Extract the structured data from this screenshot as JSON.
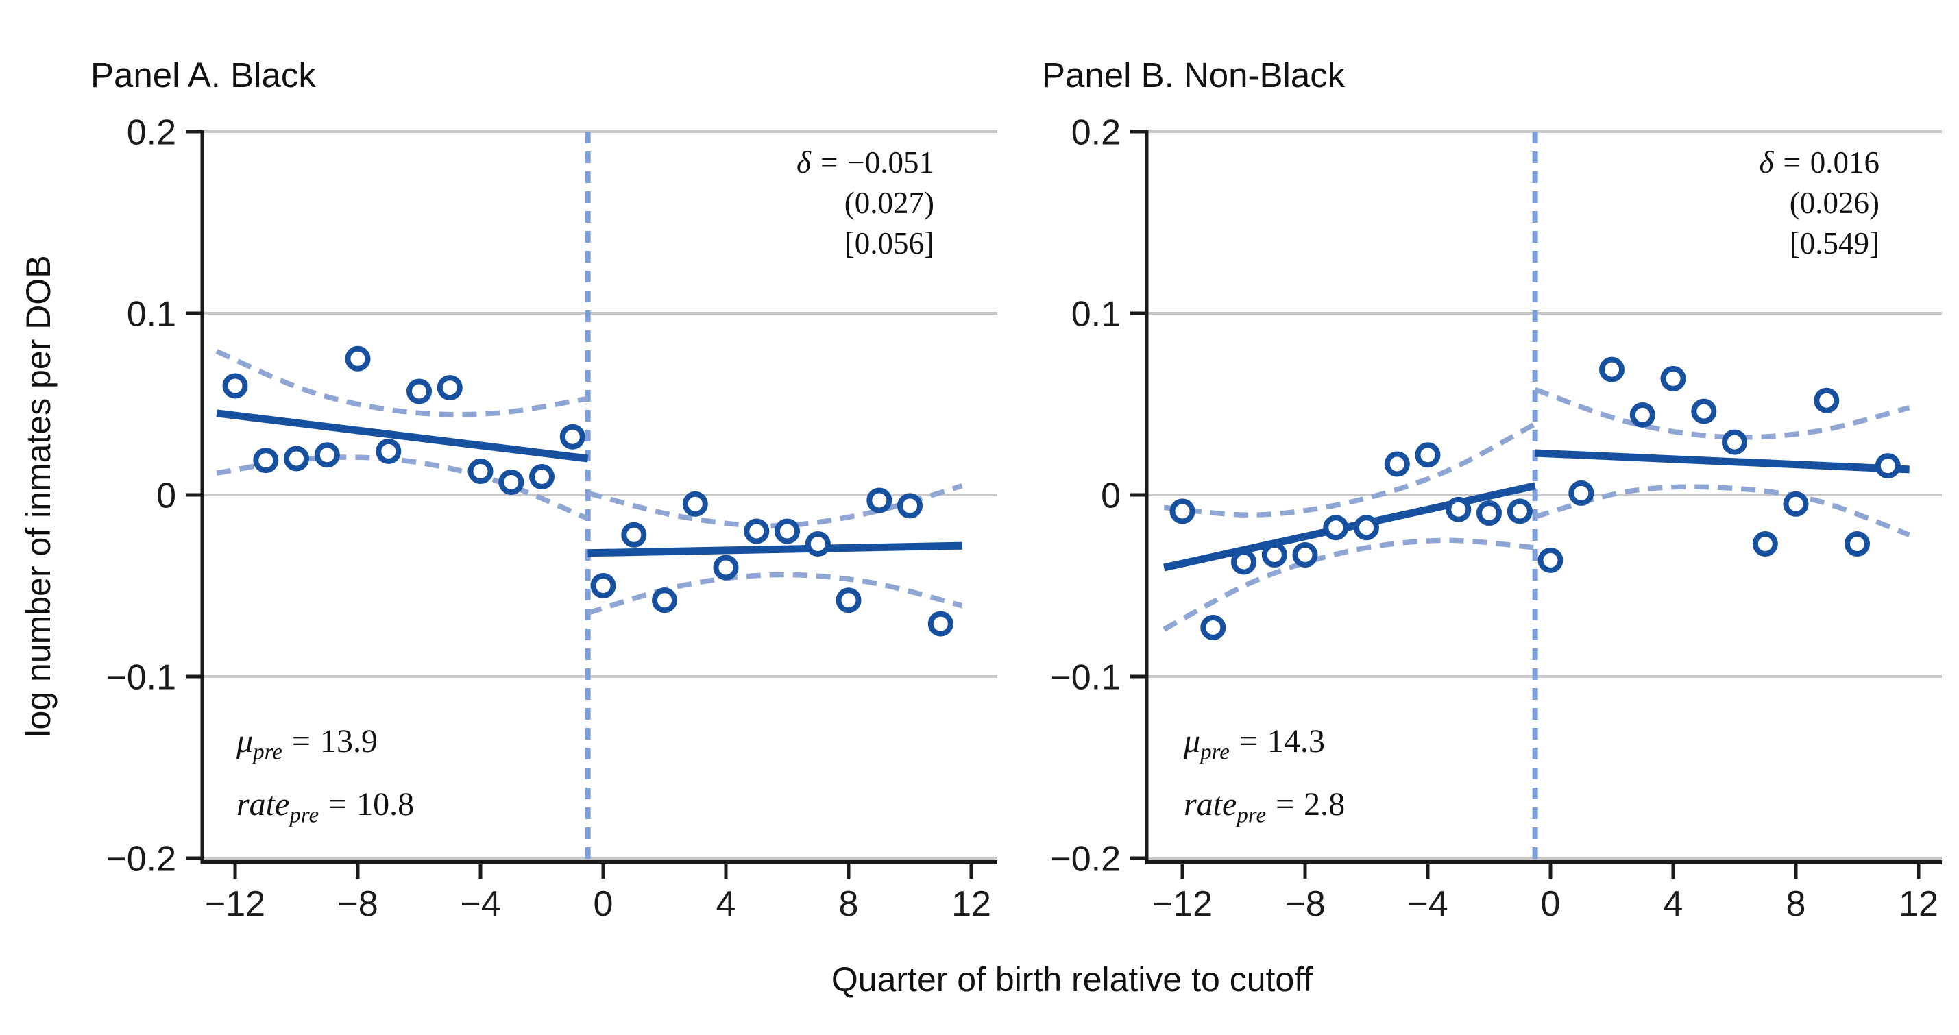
{
  "figure": {
    "x_axis_label": "Quarter of birth relative to cutoff",
    "y_axis_label": "log number of inmates per DOB",
    "colors": {
      "fit_line": "#17509e",
      "marker": "#17509e",
      "ci_band": "#8fa6d4",
      "cutoff_line": "#7d9ed8",
      "gridline": "#c8c8c8",
      "axis": "#1a1a1a",
      "text": "#1a1a1a"
    }
  },
  "chart_data": [
    {
      "type": "scatter",
      "title": "Panel A. Black",
      "xlabel": "Quarter of birth relative to cutoff",
      "ylabel": "log number of inmates per DOB",
      "xlim": [
        -13.1,
        12.9
      ],
      "ylim": [
        -0.202,
        0.2
      ],
      "x_ticks": {
        "values": [
          -12,
          -8,
          -4,
          0,
          4,
          8,
          12
        ],
        "labels": [
          "−12",
          "−8",
          "−4",
          "0",
          "4",
          "8",
          "12"
        ]
      },
      "y_ticks": {
        "values": [
          0.2,
          0.1,
          0,
          -0.1,
          -0.2
        ],
        "labels": [
          "0.2",
          "0.1",
          "0",
          "−0.1",
          "−0.2"
        ]
      },
      "grid": "horizontal",
      "cutoff_x": -0.5,
      "delta": {
        "symbol": "δ",
        "eq": "=",
        "value": "−0.051",
        "std_error": "(0.027)",
        "p_value": "[0.056]"
      },
      "stats": {
        "mu_symbol": "μ",
        "rate_symbol": "rate",
        "sub": "pre",
        "eq": "=",
        "mu_value": "13.9",
        "rate_value": "10.8"
      },
      "pre": {
        "x": [
          -12,
          -11,
          -10,
          -9,
          -8,
          -7,
          -6,
          -5,
          -4,
          -3,
          -2,
          -1
        ],
        "y": [
          0.06,
          0.019,
          0.02,
          0.022,
          0.075,
          0.024,
          0.057,
          0.059,
          0.013,
          0.007,
          0.01,
          0.032
        ],
        "fit": [
          [
            -12.6,
            0.045
          ],
          [
            -0.5,
            0.02
          ]
        ],
        "band_upper": [
          [
            -12.6,
            0.079
          ],
          [
            -9.58,
            0.057
          ],
          [
            -6.55,
            0.046
          ],
          [
            -3.53,
            0.045
          ],
          [
            -0.5,
            0.053
          ]
        ],
        "band_lower": [
          [
            -12.6,
            0.012
          ],
          [
            -9.58,
            0.02
          ],
          [
            -6.55,
            0.019
          ],
          [
            -3.53,
            0.008
          ],
          [
            -0.5,
            -0.013
          ]
        ]
      },
      "post": {
        "x": [
          0,
          1,
          2,
          3,
          4,
          5,
          6,
          7,
          8,
          9,
          10,
          11
        ],
        "y": [
          -0.05,
          -0.022,
          -0.058,
          -0.005,
          -0.04,
          -0.02,
          -0.02,
          -0.027,
          -0.058,
          -0.003,
          -0.006,
          -0.071
        ],
        "fit": [
          [
            -0.5,
            -0.032
          ],
          [
            11.7,
            -0.028
          ]
        ],
        "band_upper": [
          [
            -0.5,
            0.001
          ],
          [
            2.55,
            -0.012
          ],
          [
            5.6,
            -0.017
          ],
          [
            8.65,
            -0.01
          ],
          [
            11.7,
            0.005
          ]
        ],
        "band_lower": [
          [
            -0.5,
            -0.065
          ],
          [
            2.55,
            -0.05
          ],
          [
            5.6,
            -0.044
          ],
          [
            8.65,
            -0.048
          ],
          [
            11.7,
            -0.061
          ]
        ]
      }
    },
    {
      "type": "scatter",
      "title": "Panel B. Non-Black",
      "xlabel": "Quarter of birth relative to cutoff",
      "ylabel": "log number of inmates per DOB",
      "xlim": [
        -13.1,
        12.9
      ],
      "ylim": [
        -0.202,
        0.2
      ],
      "x_ticks": {
        "values": [
          -12,
          -8,
          -4,
          0,
          4,
          8,
          12
        ],
        "labels": [
          "−12",
          "−8",
          "−4",
          "0",
          "4",
          "8",
          "12"
        ]
      },
      "y_ticks": {
        "values": [
          0.2,
          0.1,
          0,
          -0.1,
          -0.2
        ],
        "labels": [
          "0.2",
          "0.1",
          "0",
          "−0.1",
          "−0.2"
        ]
      },
      "grid": "horizontal",
      "cutoff_x": -0.5,
      "delta": {
        "symbol": "δ",
        "eq": "=",
        "value": "0.016",
        "std_error": "(0.026)",
        "p_value": "[0.549]"
      },
      "stats": {
        "mu_symbol": "μ",
        "rate_symbol": "rate",
        "sub": "pre",
        "eq": "=",
        "mu_value": "14.3",
        "rate_value": "2.8"
      },
      "pre": {
        "x": [
          -12,
          -11,
          -10,
          -9,
          -8,
          -7,
          -6,
          -5,
          -4,
          -3,
          -2,
          -1
        ],
        "y": [
          -0.009,
          -0.073,
          -0.037,
          -0.033,
          -0.033,
          -0.018,
          -0.018,
          0.017,
          0.022,
          -0.008,
          -0.01,
          -0.009
        ],
        "fit": [
          [
            -12.6,
            -0.04
          ],
          [
            -0.5,
            0.005
          ]
        ],
        "band_upper": [
          [
            -12.6,
            -0.007
          ],
          [
            -9.58,
            -0.011
          ],
          [
            -6.55,
            -0.004
          ],
          [
            -3.53,
            0.012
          ],
          [
            -0.5,
            0.039
          ]
        ],
        "band_lower": [
          [
            -12.6,
            -0.074
          ],
          [
            -9.58,
            -0.047
          ],
          [
            -6.55,
            -0.031
          ],
          [
            -3.53,
            -0.025
          ],
          [
            -0.5,
            -0.029
          ]
        ]
      },
      "post": {
        "x": [
          0,
          1,
          2,
          3,
          4,
          5,
          6,
          7,
          8,
          9,
          10,
          11
        ],
        "y": [
          -0.036,
          0.001,
          0.069,
          0.044,
          0.064,
          0.046,
          0.029,
          -0.027,
          -0.005,
          0.052,
          -0.027,
          0.016
        ],
        "fit": [
          [
            -0.5,
            0.023
          ],
          [
            11.7,
            0.014
          ]
        ],
        "band_upper": [
          [
            -0.5,
            0.058
          ],
          [
            2.55,
            0.04
          ],
          [
            5.6,
            0.032
          ],
          [
            8.65,
            0.035
          ],
          [
            11.7,
            0.048
          ]
        ],
        "band_lower": [
          [
            -0.5,
            -0.012
          ],
          [
            2.55,
            0.002
          ],
          [
            5.6,
            0.004
          ],
          [
            8.65,
            -0.003
          ],
          [
            11.7,
            -0.022
          ]
        ]
      }
    }
  ]
}
